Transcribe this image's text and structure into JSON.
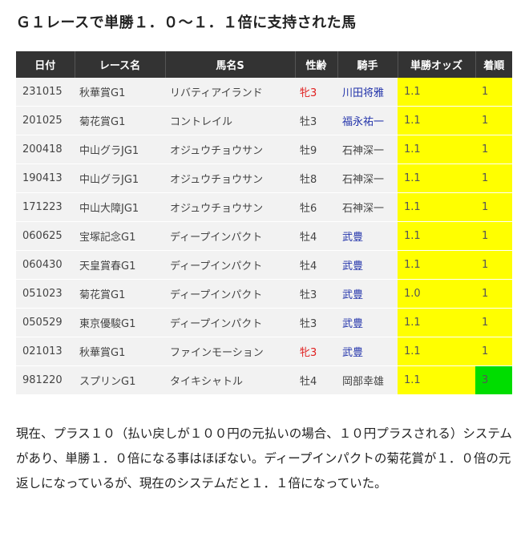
{
  "title": "Ｇ１レースで単勝１．０～１．１倍に支持された馬",
  "table": {
    "headers": [
      "日付",
      "レース名",
      "馬名S",
      "性齢",
      "騎手",
      "単勝オッズ",
      "着順"
    ],
    "rows": [
      {
        "date": "231015",
        "race": "秋華賞G1",
        "horse": "リバティアイランド",
        "sex": "牝3",
        "jockey": "川田将雅",
        "odds": "1.1",
        "rank": "1"
      },
      {
        "date": "201025",
        "race": "菊花賞G1",
        "horse": "コントレイル",
        "sex": "牡3",
        "jockey": "福永祐一",
        "odds": "1.1",
        "rank": "1"
      },
      {
        "date": "200418",
        "race": "中山グラJG1",
        "horse": "オジュウチョウサン",
        "sex": "牡9",
        "jockey": "石神深一",
        "odds": "1.1",
        "rank": "1"
      },
      {
        "date": "190413",
        "race": "中山グラJG1",
        "horse": "オジュウチョウサン",
        "sex": "牡8",
        "jockey": "石神深一",
        "odds": "1.1",
        "rank": "1"
      },
      {
        "date": "171223",
        "race": "中山大障JG1",
        "horse": "オジュウチョウサン",
        "sex": "牡6",
        "jockey": "石神深一",
        "odds": "1.1",
        "rank": "1"
      },
      {
        "date": "060625",
        "race": "宝塚記念G1",
        "horse": "ディープインパクト",
        "sex": "牡4",
        "jockey": "武豊",
        "odds": "1.1",
        "rank": "1"
      },
      {
        "date": "060430",
        "race": "天皇賞春G1",
        "horse": "ディープインパクト",
        "sex": "牡4",
        "jockey": "武豊",
        "odds": "1.1",
        "rank": "1"
      },
      {
        "date": "051023",
        "race": "菊花賞G1",
        "horse": "ディープインパクト",
        "sex": "牡3",
        "jockey": "武豊",
        "odds": "1.0",
        "rank": "1"
      },
      {
        "date": "050529",
        "race": "東京優駿G1",
        "horse": "ディープインパクト",
        "sex": "牡3",
        "jockey": "武豊",
        "odds": "1.1",
        "rank": "1"
      },
      {
        "date": "021013",
        "race": "秋華賞G1",
        "horse": "ファインモーション",
        "sex": "牝3",
        "jockey": "武豊",
        "odds": "1.1",
        "rank": "1"
      },
      {
        "date": "981220",
        "race": "スプリンG1",
        "horse": "タイキシャトル",
        "sex": "牡4",
        "jockey": "岡部幸雄",
        "odds": "1.1",
        "rank": "3"
      }
    ]
  },
  "paragraph": "現在、プラス１０（払い戻しが１００円の元払いの場合、１０円プラスされる）システムがあり、単勝１．０倍になる事はほぼない。ディープインパクトの菊花賞が１．０倍の元返しになっているが、現在のシステムだと１．１倍になっていた。",
  "colors": {
    "header_bg": "#333333",
    "odds_highlight": "#ffff00",
    "non_win_highlight": "#00dd00",
    "filly_text": "#e02020",
    "jockey_link": "#2233aa"
  }
}
